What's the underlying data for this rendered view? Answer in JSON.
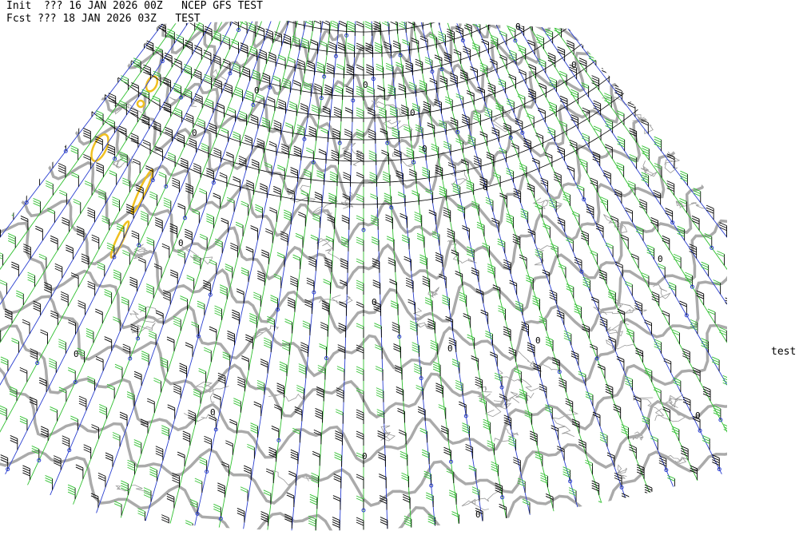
{
  "header": {
    "init_line": "Init  ??? 16 JAN 2026 00Z   NCEP GFS TEST",
    "forecast_line": "Fcst ??? 18 JAN 2026 03Z   TEST"
  },
  "side_label": "test",
  "contour_labels": [
    "0",
    "0",
    "0",
    "0",
    "0",
    "0",
    "0",
    "0",
    "0",
    "0",
    "0",
    "0",
    "0",
    "0",
    "0",
    "0",
    "0",
    "0"
  ]
}
